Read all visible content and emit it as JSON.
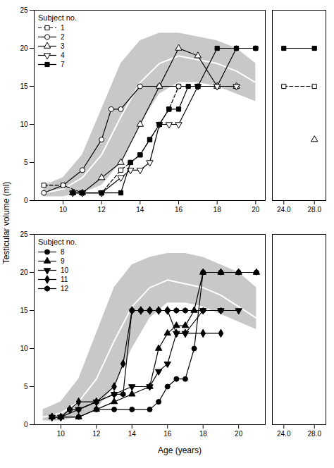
{
  "chart_data": [
    {
      "type": "line",
      "ylabel": "Testicular volume (ml)",
      "color": "#000000",
      "legend": "upper left",
      "legend_title": "Subject no.",
      "grid": false,
      "band": {
        "x": [
          9,
          10,
          11,
          12,
          13,
          14,
          15,
          16,
          17,
          18,
          19,
          20
        ],
        "upper": [
          2.0,
          3.0,
          6.0,
          12.0,
          18.0,
          21.0,
          22.0,
          22.0,
          21.5,
          21.0,
          20.0,
          18.0
        ],
        "lower": [
          0.5,
          0.5,
          1.0,
          2.0,
          5.0,
          10.0,
          14.0,
          15.5,
          15.5,
          15.0,
          14.0,
          13.0
        ],
        "median": [
          1.0,
          1.5,
          3.0,
          6.0,
          11.0,
          15.5,
          18.0,
          19.0,
          18.5,
          18.0,
          17.0,
          15.5
        ],
        "color": "#c8c8c8",
        "median_color": "#ffffff"
      },
      "series": [
        {
          "name": "1",
          "marker": "open-square",
          "line_style": "dashed",
          "x": [
            9.0,
            10.0,
            11.0,
            12.0,
            13.0,
            13.5,
            14.0,
            14.5,
            15.0,
            15.5,
            16.0,
            17.0,
            18.0,
            19.0,
            24.0,
            28.0
          ],
          "values": [
            2.0,
            2.0,
            1.0,
            1.0,
            4.0,
            5.0,
            6.0,
            8.0,
            10.0,
            12.0,
            15.0,
            15.0,
            15.0,
            15.0,
            15.0,
            15.0
          ]
        },
        {
          "name": "2",
          "marker": "open-circle",
          "line_style": "solid",
          "x": [
            9.0,
            10.0,
            11.0,
            12.0,
            12.5,
            13.0,
            14.0,
            15.0,
            16.0,
            17.0,
            18.0,
            19.0,
            20.0
          ],
          "values": [
            1.0,
            2.0,
            4.0,
            8.0,
            12.0,
            12.0,
            15.0,
            15.0,
            15.0,
            15.0,
            15.0,
            20.0,
            20.0
          ]
        },
        {
          "name": "3",
          "marker": "open-triangle-up",
          "line_style": "solid",
          "x": [
            10.5,
            11.0,
            12.0,
            13.0,
            14.0,
            15.0,
            16.0,
            17.0,
            18.0,
            19.0,
            28.0
          ],
          "values": [
            1.0,
            1.0,
            3.0,
            5.0,
            10.0,
            15.0,
            20.0,
            19.0,
            15.0,
            15.0,
            8.0
          ]
        },
        {
          "name": "4",
          "marker": "open-triangle-down",
          "line_style": "solid",
          "x": [
            10.5,
            11.0,
            12.0,
            13.0,
            13.5,
            14.0,
            14.5,
            15.0,
            15.5,
            16.0,
            17.0,
            18.0,
            19.0
          ],
          "values": [
            1.0,
            1.0,
            1.0,
            3.0,
            4.0,
            4.0,
            5.0,
            10.0,
            10.0,
            10.0,
            15.0,
            15.0,
            15.0
          ]
        },
        {
          "name": "7",
          "marker": "filled-square",
          "line_style": "solid",
          "x": [
            10.5,
            11.0,
            12.0,
            13.0,
            13.5,
            14.0,
            14.5,
            15.0,
            15.5,
            16.0,
            16.5,
            17.0,
            18.0,
            19.0,
            20.0,
            24.0,
            28.0
          ],
          "values": [
            1.0,
            1.0,
            1.0,
            1.0,
            5.0,
            6.0,
            8.0,
            10.0,
            12.0,
            12.0,
            15.0,
            15.0,
            20.0,
            20.0,
            20.0,
            20.0,
            20.0
          ]
        }
      ],
      "ylim": [
        0,
        25
      ],
      "yticks": [
        0,
        5,
        10,
        15,
        20,
        25
      ],
      "xlim": [
        8.5,
        20.5
      ],
      "xticks": [
        10,
        12,
        14,
        16,
        18,
        20
      ],
      "x2lim": [
        22.5,
        29.5
      ],
      "x2ticks": [
        24,
        28
      ]
    },
    {
      "type": "line",
      "xlabel": "Age (years)",
      "color": "#000000",
      "legend": "upper left",
      "legend_title": "Subject no.",
      "grid": false,
      "band": {
        "x": [
          9,
          10,
          11,
          12,
          13,
          14,
          15,
          16,
          17,
          18,
          19,
          20,
          21
        ],
        "upper": [
          2.0,
          3.0,
          6.0,
          12.0,
          18.0,
          21.0,
          22.0,
          22.5,
          22.5,
          22.0,
          21.0,
          20.0,
          18.0
        ],
        "lower": [
          0.5,
          0.5,
          1.0,
          2.0,
          5.0,
          10.0,
          14.0,
          16.0,
          16.0,
          15.5,
          14.5,
          13.5,
          12.5
        ],
        "median": [
          1.0,
          1.5,
          3.0,
          6.0,
          11.0,
          15.5,
          18.0,
          19.0,
          18.5,
          18.0,
          17.0,
          15.5,
          14.0
        ],
        "color": "#c8c8c8",
        "median_color": "#ffffff"
      },
      "series": [
        {
          "name": "8",
          "marker": "filled-circle",
          "line_style": "solid",
          "x": [
            9.5,
            10.0,
            11.0,
            12.0,
            13.0,
            14.0,
            15.0,
            15.5,
            16.0,
            16.5,
            17.0,
            17.5,
            18.0,
            19.0,
            20.0,
            21.0
          ],
          "values": [
            1.0,
            1.0,
            1.0,
            2.0,
            2.0,
            2.0,
            2.0,
            3.0,
            5.0,
            6.0,
            6.0,
            10.0,
            20.0,
            20.0,
            20.0,
            20.0
          ]
        },
        {
          "name": "9",
          "marker": "filled-triangle-up",
          "line_style": "solid",
          "x": [
            9.5,
            10.0,
            11.0,
            12.0,
            13.0,
            14.0,
            15.0,
            15.5,
            16.0,
            16.5,
            17.0,
            17.5,
            18.0,
            19.0,
            20.0,
            21.0
          ],
          "values": [
            1.0,
            1.0,
            1.0,
            2.0,
            3.0,
            4.0,
            5.0,
            10.0,
            12.0,
            13.0,
            13.0,
            15.0,
            20.0,
            20.0,
            20.0,
            20.0
          ]
        },
        {
          "name": "10",
          "marker": "filled-triangle-down",
          "line_style": "solid",
          "x": [
            9.5,
            10.0,
            11.0,
            12.0,
            13.0,
            14.0,
            15.0,
            15.5,
            16.0,
            16.5,
            17.0,
            18.0,
            19.0,
            20.0
          ],
          "values": [
            1.0,
            1.0,
            2.0,
            3.0,
            4.0,
            5.0,
            5.0,
            7.0,
            8.0,
            12.0,
            12.0,
            15.0,
            15.0,
            15.0
          ]
        },
        {
          "name": "11",
          "marker": "filled-diamond",
          "line_style": "solid",
          "x": [
            9.5,
            10.0,
            10.5,
            11.0,
            12.0,
            13.0,
            13.5,
            14.0,
            14.5,
            15.0,
            15.5,
            16.0,
            16.5,
            17.0,
            18.0,
            19.0
          ],
          "values": [
            1.0,
            1.0,
            2.0,
            3.0,
            3.0,
            5.0,
            8.0,
            15.0,
            15.0,
            15.0,
            15.0,
            15.0,
            12.0,
            12.0,
            12.0,
            12.0
          ]
        },
        {
          "name": "12",
          "marker": "filled-hexagon",
          "line_style": "solid",
          "x": [
            9.5,
            10.0,
            10.5,
            11.0,
            12.0,
            13.0,
            13.5,
            14.0,
            14.5,
            15.0,
            15.5,
            16.0,
            16.5,
            17.0,
            18.0,
            19.0
          ],
          "values": [
            1.0,
            1.0,
            2.0,
            2.0,
            3.0,
            4.0,
            4.0,
            15.0,
            15.0,
            15.0,
            15.0,
            15.0,
            15.0,
            15.0,
            15.0,
            15.0
          ]
        }
      ],
      "ylim": [
        0,
        25
      ],
      "yticks": [
        0,
        5,
        10,
        15,
        20,
        25
      ],
      "xlim": [
        8.5,
        21.5
      ],
      "xticks": [
        10,
        12,
        14,
        16,
        18,
        20
      ],
      "x2lim": [
        22.5,
        29.5
      ],
      "x2ticks": [
        24,
        28
      ]
    }
  ]
}
